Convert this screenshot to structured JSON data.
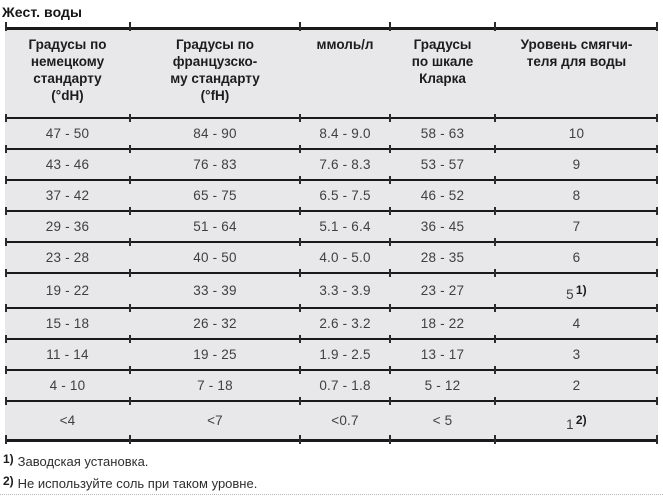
{
  "title": "Жест. воды",
  "table": {
    "headers": [
      "Градусы по\nнемецкому\nстандарту\n(°dH)",
      "Градусы по\nфранцузско-\nму стандарту\n(°fH)",
      "ммоль/л",
      "Градусы\nпо шкале\nКларка",
      "Уровень смягчи-\nтеля для воды"
    ],
    "rows": [
      {
        "cells": [
          "47 - 50",
          "84 - 90",
          "8.4 - 9.0",
          "58 - 63",
          "10"
        ],
        "sup": ""
      },
      {
        "cells": [
          "43 - 46",
          "76 - 83",
          "7.6 - 8.3",
          "53 - 57",
          "9"
        ],
        "sup": ""
      },
      {
        "cells": [
          "37 - 42",
          "65 - 75",
          "6.5 - 7.5",
          "46 - 52",
          "8"
        ],
        "sup": ""
      },
      {
        "cells": [
          "29 - 36",
          "51 - 64",
          "5.1 - 6.4",
          "36 - 45",
          "7"
        ],
        "sup": ""
      },
      {
        "cells": [
          "23 - 28",
          "40 - 50",
          "4.0 - 5.0",
          "28 - 35",
          "6"
        ],
        "sup": ""
      },
      {
        "cells": [
          "19 - 22",
          "33 - 39",
          "3.3 - 3.9",
          "23 - 27",
          "5"
        ],
        "sup": "1)"
      },
      {
        "cells": [
          "15 - 18",
          "26 - 32",
          "2.6 - 3.2",
          "18 - 22",
          "4"
        ],
        "sup": ""
      },
      {
        "cells": [
          "11 - 14",
          "19 - 25",
          "1.9 - 2.5",
          "13 - 17",
          "3"
        ],
        "sup": ""
      },
      {
        "cells": [
          "4 - 10",
          "7 - 18",
          "0.7 - 1.8",
          "5 - 12",
          "2"
        ],
        "sup": ""
      },
      {
        "cells": [
          "<4",
          "<7",
          "<0.7",
          "< 5",
          "1"
        ],
        "sup": "2)"
      }
    ]
  },
  "footnotes": [
    {
      "marker": "1)",
      "text": "Заводская установка."
    },
    {
      "marker": "2)",
      "text": "Не используйте соль при таком уровне."
    }
  ]
}
